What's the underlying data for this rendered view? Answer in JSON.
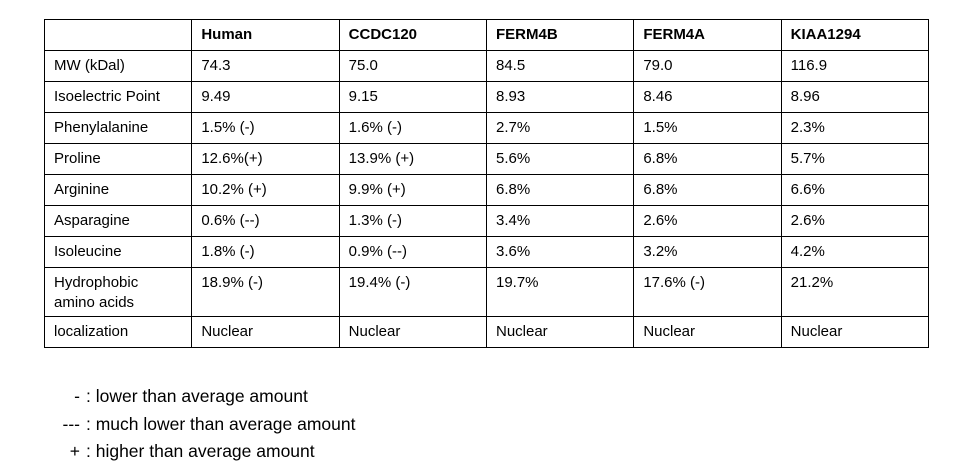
{
  "table": {
    "columns": [
      "",
      "Human",
      "CCDC120",
      "FERM4B",
      "FERM4A",
      "KIAA1294"
    ],
    "rows": [
      {
        "label": "MW (kDal)",
        "values": [
          "74.3",
          "75.0",
          "84.5",
          "79.0",
          "116.9"
        ]
      },
      {
        "label": "Isoelectric Point",
        "values": [
          "9.49",
          "9.15",
          "8.93",
          "8.46",
          "8.96"
        ]
      },
      {
        "label": "Phenylalanine",
        "values": [
          "1.5% (-)",
          "1.6% (-)",
          "2.7%",
          "1.5%",
          "2.3%"
        ]
      },
      {
        "label": "Proline",
        "values": [
          "12.6%(+)",
          "13.9% (+)",
          "5.6%",
          "6.8%",
          "5.7%"
        ]
      },
      {
        "label": "Arginine",
        "values": [
          "10.2% (+)",
          "9.9% (+)",
          "6.8%",
          "6.8%",
          "6.6%"
        ]
      },
      {
        "label": "Asparagine",
        "values": [
          "0.6% (--)",
          "1.3% (-)",
          "3.4%",
          "2.6%",
          "2.6%"
        ]
      },
      {
        "label": "Isoleucine",
        "values": [
          "1.8% (-)",
          "0.9% (--)",
          "3.6%",
          "3.2%",
          "4.2%"
        ]
      },
      {
        "label": "Hydrophobic amino acids",
        "values": [
          "18.9% (-)",
          "19.4% (-)",
          "19.7%",
          "17.6% (-)",
          "21.2%"
        ]
      },
      {
        "label": "localization",
        "values": [
          "Nuclear",
          "Nuclear",
          "Nuclear",
          "Nuclear",
          "Nuclear"
        ]
      }
    ]
  },
  "legend": {
    "items": [
      {
        "symbol": "-",
        "text": ": lower than average amount"
      },
      {
        "symbol": "---",
        "text": ": much lower than average amount"
      },
      {
        "symbol": "+",
        "text": ": higher than average amount"
      }
    ]
  }
}
